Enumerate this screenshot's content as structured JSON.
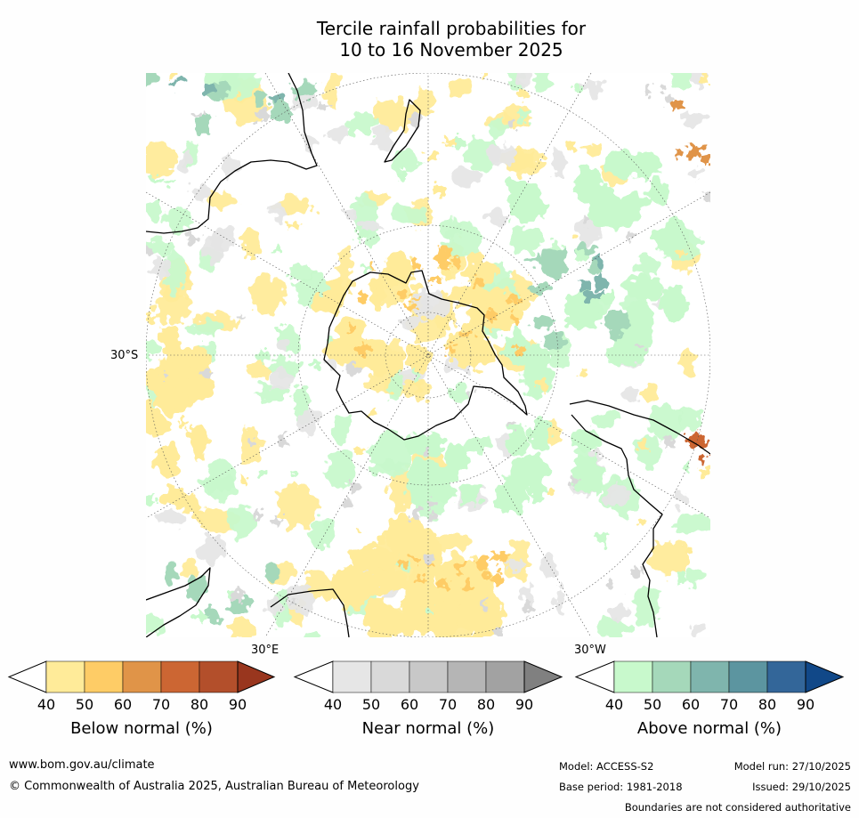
{
  "title_line1": "Tercile rainfall probabilities for",
  "title_line2": "10 to 16 November 2025",
  "map": {
    "labels": {
      "lat_30s": "30°S",
      "lon_30e": "30°E",
      "lon_30w": "30°W"
    }
  },
  "colorbars": [
    {
      "label": "Below normal (%)",
      "ticks": [
        "40",
        "50",
        "60",
        "70",
        "80",
        "90"
      ],
      "under_color": "#ffffff",
      "colors": [
        "#ffeb99",
        "#fecc66",
        "#e09448",
        "#cc6633",
        "#b34f2b"
      ],
      "over_color": "#99361e"
    },
    {
      "label": "Near normal (%)",
      "ticks": [
        "40",
        "50",
        "60",
        "70",
        "80",
        "90"
      ],
      "under_color": "#ffffff",
      "colors": [
        "#e6e6e6",
        "#d9d9d9",
        "#c8c8c8",
        "#b5b5b5",
        "#a2a2a2"
      ],
      "over_color": "#808080"
    },
    {
      "label": "Above normal (%)",
      "ticks": [
        "40",
        "50",
        "60",
        "70",
        "80",
        "90"
      ],
      "under_color": "#ffffff",
      "colors": [
        "#c8f9cc",
        "#a5d8ba",
        "#7fb5ad",
        "#5c95a0",
        "#336699"
      ],
      "over_color": "#114888"
    }
  ],
  "footer": {
    "website": "www.bom.gov.au/climate",
    "copyright": "© Commonwealth of Australia 2025, Australian Bureau of Meteorology",
    "model": "Model: ACCESS-S2",
    "base_period": "Base period: 1981-2018",
    "model_run": "Model run: 27/10/2025",
    "issued": "Issued: 29/10/2025",
    "disclaimer": "Boundaries are not considered authoritative"
  },
  "colors": {
    "below_light": "#ffeb99",
    "below_mid": "#fecc66",
    "below_dark": "#e09448",
    "below_darker": "#cc6633",
    "near_light": "#e6e6e6",
    "near_mid": "#d9d9d9",
    "above_light": "#c8f9cc",
    "above_mid": "#a5d8ba",
    "above_dark": "#7fb5ad"
  }
}
